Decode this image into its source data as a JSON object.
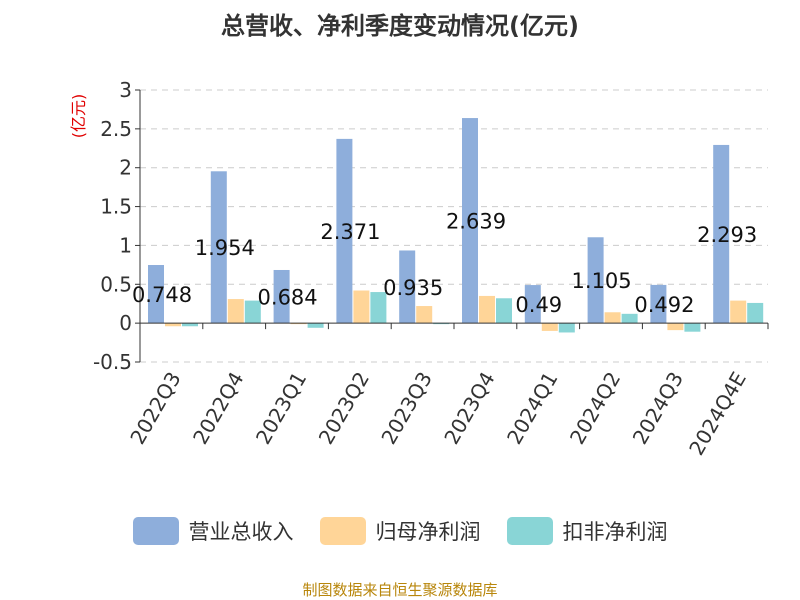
{
  "title": "总营收、净利季度变动情况(亿元)",
  "source": "制图数据来自恒生聚源数据库",
  "colors": {
    "revenue": "#8eaedb",
    "net_profit": "#ffd598",
    "deducted_profit": "#89d5d6",
    "grid": "#cccccc",
    "unit": "#e00000",
    "source": "#b8860b"
  },
  "chart_data": {
    "type": "bar",
    "title": "总营收、净利季度变动情况(亿元)",
    "ylabel": "(亿元)",
    "ylim": [
      -0.5,
      3
    ],
    "yticks": [
      "3",
      "2.5",
      "2",
      "1.5",
      "1",
      "0.5",
      "0",
      "-0.5"
    ],
    "categories": [
      "2022Q3",
      "2022Q4",
      "2023Q1",
      "2023Q2",
      "2023Q3",
      "2023Q4",
      "2024Q1",
      "2024Q2",
      "2024Q3",
      "2024Q4E"
    ],
    "series": [
      {
        "name": "营业总收入",
        "values": [
          0.748,
          1.954,
          0.684,
          2.371,
          0.935,
          2.639,
          0.49,
          1.105,
          0.492,
          2.293
        ]
      },
      {
        "name": "归母净利润",
        "values": [
          -0.04,
          0.31,
          -0.01,
          0.42,
          0.22,
          0.35,
          -0.1,
          0.14,
          -0.09,
          0.29
        ]
      },
      {
        "name": "扣非净利润",
        "values": [
          -0.04,
          0.29,
          -0.06,
          0.4,
          -0.01,
          0.32,
          -0.12,
          0.12,
          -0.11,
          0.26
        ]
      }
    ],
    "data_labels": [
      "0.748",
      "1.954",
      "0.684",
      "2.371",
      "0.935",
      "2.639",
      "0.49",
      "1.105",
      "0.492",
      "2.293"
    ],
    "grid": true,
    "legend_position": "bottom"
  }
}
